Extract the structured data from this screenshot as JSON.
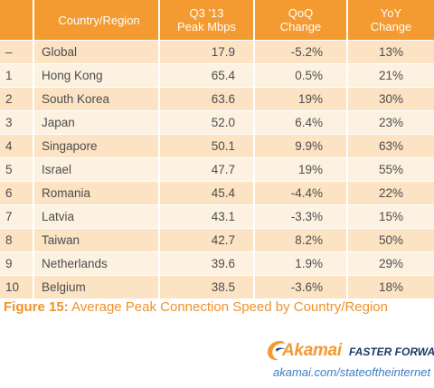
{
  "chart_data": {
    "type": "table",
    "columns": [
      {
        "key": "rank",
        "label": ""
      },
      {
        "key": "country",
        "label": "Country/Region"
      },
      {
        "key": "peak",
        "label": "Q3 '13 Peak Mbps",
        "label_lines": [
          "Q3 '13",
          "Peak Mbps"
        ]
      },
      {
        "key": "qoq",
        "label": "QoQ Change",
        "label_lines": [
          "QoQ",
          "Change"
        ]
      },
      {
        "key": "yoy",
        "label": "YoY Change",
        "label_lines": [
          "YoY",
          "Change"
        ]
      }
    ],
    "rows": [
      {
        "rank": "–",
        "country": "Global",
        "peak": "17.9",
        "qoq": "-5.2%",
        "yoy": "13%"
      },
      {
        "rank": "1",
        "country": "Hong Kong",
        "peak": "65.4",
        "qoq": "0.5%",
        "yoy": "21%"
      },
      {
        "rank": "2",
        "country": "South Korea",
        "peak": "63.6",
        "qoq": "19%",
        "yoy": "30%"
      },
      {
        "rank": "3",
        "country": "Japan",
        "peak": "52.0",
        "qoq": "6.4%",
        "yoy": "23%"
      },
      {
        "rank": "4",
        "country": "Singapore",
        "peak": "50.1",
        "qoq": "9.9%",
        "yoy": "63%"
      },
      {
        "rank": "5",
        "country": "Israel",
        "peak": "47.7",
        "qoq": "19%",
        "yoy": "55%"
      },
      {
        "rank": "6",
        "country": "Romania",
        "peak": "45.4",
        "qoq": "-4.4%",
        "yoy": "22%"
      },
      {
        "rank": "7",
        "country": "Latvia",
        "peak": "43.1",
        "qoq": "-3.3%",
        "yoy": "15%"
      },
      {
        "rank": "8",
        "country": "Taiwan",
        "peak": "42.7",
        "qoq": "8.2%",
        "yoy": "50%"
      },
      {
        "rank": "9",
        "country": "Netherlands",
        "peak": "39.6",
        "qoq": "1.9%",
        "yoy": "29%"
      },
      {
        "rank": "10",
        "country": "Belgium",
        "peak": "38.5",
        "qoq": "-3.6%",
        "yoy": "18%"
      }
    ]
  },
  "caption": {
    "label": "Figure 15:",
    "text": "Average Peak Connection Speed by Country/Region"
  },
  "brand": {
    "name": "Akamai",
    "tagline": "FASTER FORWARD",
    "url": "akamai.com/stateoftheinternet",
    "logo_icon": "akamai-wave-icon"
  },
  "colors": {
    "header": "#f39a30",
    "row_dark": "#fbe3c4",
    "row_light": "#fdf1e1",
    "caption": "#f0922a",
    "text": "#4d4d4d",
    "tagline": "#1a3a6b",
    "url": "#3a7ec0"
  }
}
